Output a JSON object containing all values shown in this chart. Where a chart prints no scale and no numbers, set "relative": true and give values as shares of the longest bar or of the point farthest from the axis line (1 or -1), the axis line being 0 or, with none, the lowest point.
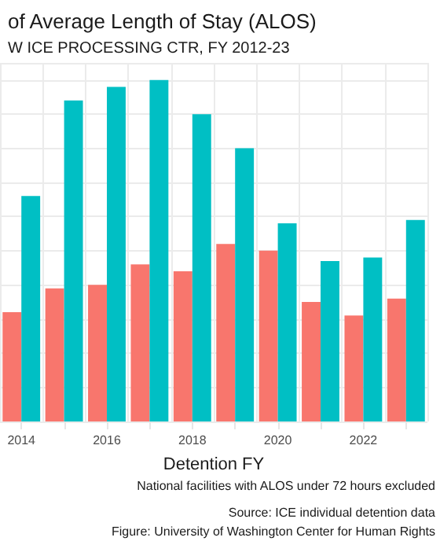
{
  "chart_data": {
    "type": "bar",
    "title": "of Average Length of Stay (ALOS)",
    "subtitle": "W ICE PROCESSING CTR, FY 2012-23",
    "xlabel": "Detention FY",
    "annotations": [
      "National facilities with ALOS under 72 hours excluded",
      "Source: ICE individual detention data",
      "Figure: University of Washington Center for Human Rights"
    ],
    "categories": [
      "2014",
      null,
      "2016",
      null,
      "2018",
      null,
      "2020",
      null,
      "2022",
      null
    ],
    "relative": true,
    "grid": true,
    "series": [
      {
        "color": "#f8766d",
        "values": [
          0.32,
          0.39,
          0.4,
          0.46,
          0.44,
          0.52,
          0.5,
          0.35,
          0.31,
          0.36
        ]
      },
      {
        "color": "#00bfc4",
        "values": [
          0.66,
          0.94,
          0.98,
          1,
          0.9,
          0.8,
          0.58,
          0.47,
          0.48,
          0.59
        ]
      }
    ]
  }
}
